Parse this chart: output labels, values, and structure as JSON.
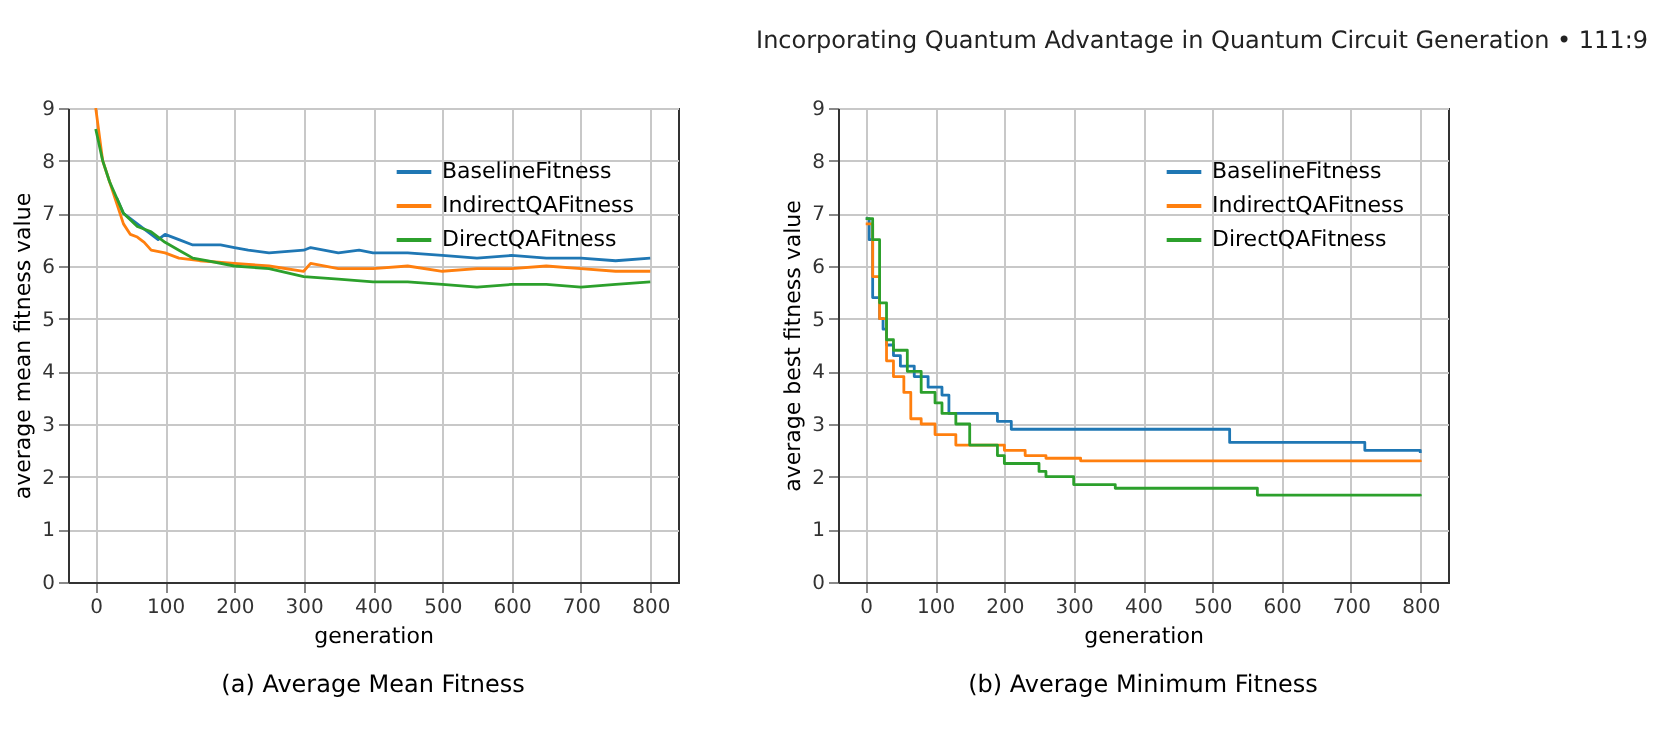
{
  "chart_data": [
    {
      "type": "line",
      "title": "(a) Average Mean Fitness",
      "xlabel": "generation",
      "ylabel": "average mean fitness value",
      "annotations": [
        "Incorporating Quantum Advantage in Quantum Circuit Generation  •  111:9"
      ],
      "xlim": [
        -40,
        840
      ],
      "xticks": [
        0,
        100,
        200,
        300,
        400,
        500,
        600,
        700,
        800
      ],
      "ylim": [
        0,
        9
      ],
      "yticks": [
        0,
        1,
        2,
        3,
        4,
        5,
        6,
        7,
        8,
        9
      ],
      "grid": true,
      "legend": "top right",
      "series": [
        {
          "name": "BaselineFitness",
          "color": "#1f77b4",
          "x": [
            30,
            40,
            50,
            60,
            70,
            80,
            90,
            100,
            120,
            140,
            160,
            180,
            200,
            220,
            250,
            300,
            310,
            350,
            380,
            400,
            450,
            500,
            550,
            600,
            650,
            700,
            750,
            800
          ],
          "values": [
            7.3,
            7.0,
            6.9,
            6.8,
            6.7,
            6.6,
            6.5,
            6.6,
            6.5,
            6.4,
            6.4,
            6.4,
            6.35,
            6.3,
            6.25,
            6.3,
            6.35,
            6.25,
            6.3,
            6.25,
            6.25,
            6.2,
            6.15,
            6.2,
            6.15,
            6.15,
            6.1,
            6.15
          ]
        },
        {
          "name": "IndirectQAFitness",
          "color": "#ff7f0e",
          "x": [
            0,
            10,
            20,
            30,
            40,
            50,
            60,
            70,
            80,
            100,
            120,
            150,
            200,
            250,
            300,
            310,
            350,
            400,
            450,
            500,
            550,
            600,
            650,
            700,
            750,
            800
          ],
          "values": [
            9,
            8.0,
            7.6,
            7.2,
            6.8,
            6.6,
            6.55,
            6.45,
            6.3,
            6.25,
            6.15,
            6.1,
            6.05,
            6.0,
            5.9,
            6.05,
            5.95,
            5.95,
            6.0,
            5.9,
            5.95,
            5.95,
            6.0,
            5.95,
            5.9,
            5.9
          ]
        },
        {
          "name": "DirectQAFitness",
          "color": "#2ca02c",
          "x": [
            0,
            10,
            20,
            30,
            40,
            60,
            80,
            100,
            120,
            140,
            160,
            200,
            250,
            300,
            350,
            400,
            450,
            500,
            550,
            600,
            650,
            700,
            750,
            800
          ],
          "values": [
            8.6,
            8.0,
            7.6,
            7.3,
            7.0,
            6.75,
            6.65,
            6.45,
            6.3,
            6.15,
            6.1,
            6.0,
            5.95,
            5.8,
            5.75,
            5.7,
            5.7,
            5.65,
            5.6,
            5.65,
            5.65,
            5.6,
            5.65,
            5.7
          ]
        }
      ]
    },
    {
      "type": "step",
      "title": "(b) Average Minimum Fitness",
      "xlabel": "generation",
      "ylabel": "average best fitness value",
      "xlim": [
        -40,
        840
      ],
      "xticks": [
        0,
        100,
        200,
        300,
        400,
        500,
        600,
        700,
        800
      ],
      "ylim": [
        0,
        9
      ],
      "yticks": [
        0,
        1,
        2,
        3,
        4,
        5,
        6,
        7,
        8,
        9
      ],
      "grid": true,
      "legend": "top right",
      "series": [
        {
          "name": "BaselineFitness",
          "color": "#1f77b4",
          "x": [
            0,
            5,
            10,
            20,
            25,
            30,
            40,
            50,
            70,
            90,
            110,
            120,
            190,
            210,
            525,
            720,
            800
          ],
          "values": [
            6.9,
            6.5,
            5.4,
            5.0,
            4.8,
            4.5,
            4.3,
            4.1,
            3.9,
            3.7,
            3.55,
            3.2,
            3.05,
            2.9,
            2.65,
            2.5,
            2.45
          ]
        },
        {
          "name": "IndirectQAFitness",
          "color": "#ff7f0e",
          "x": [
            0,
            10,
            20,
            30,
            40,
            55,
            65,
            80,
            100,
            130,
            200,
            230,
            260,
            310,
            800
          ],
          "values": [
            6.8,
            5.8,
            5.0,
            4.2,
            3.9,
            3.6,
            3.1,
            3.0,
            2.8,
            2.6,
            2.5,
            2.4,
            2.35,
            2.3,
            2.28
          ]
        },
        {
          "name": "DirectQAFitness",
          "color": "#2ca02c",
          "x": [
            0,
            10,
            20,
            30,
            40,
            60,
            80,
            100,
            110,
            130,
            150,
            190,
            200,
            250,
            260,
            300,
            360,
            565,
            800
          ],
          "values": [
            6.9,
            6.5,
            5.3,
            4.6,
            4.4,
            4.0,
            3.6,
            3.4,
            3.2,
            3.0,
            2.6,
            2.4,
            2.25,
            2.1,
            2.0,
            1.85,
            1.78,
            1.65,
            1.63
          ]
        }
      ]
    }
  ]
}
